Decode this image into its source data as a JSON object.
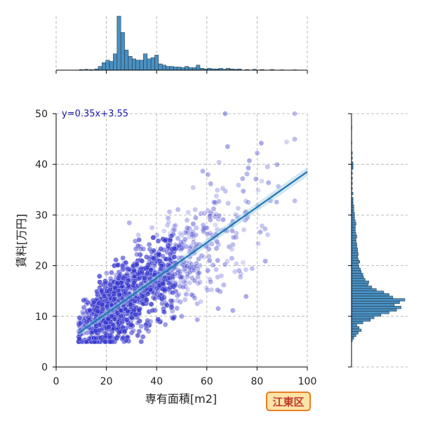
{
  "chart_data": {
    "type": "scatter",
    "title": "",
    "xlabel": "専有面積[m2]",
    "ylabel": "賃料[万円]",
    "xlim": [
      0,
      100
    ],
    "ylim": [
      0,
      50
    ],
    "xticks": [
      "0",
      "20",
      "40",
      "60",
      "80",
      "100"
    ],
    "yticks": [
      "0",
      "10",
      "20",
      "30",
      "40",
      "50"
    ],
    "grid": true,
    "equation": "y=0.35x+3.55",
    "regression": {
      "slope": 0.35,
      "intercept": 3.55,
      "x_range": [
        9,
        100
      ]
    },
    "badge": "江東区",
    "scatter_summary": {
      "x_range": [
        9,
        95
      ],
      "y_range": [
        5,
        50
      ],
      "dense_region": {
        "x": [
          15,
          45
        ],
        "y": [
          6,
          25
        ]
      }
    },
    "marginal_x": {
      "bin_width": 1.5,
      "bins": [
        {
          "x": 10,
          "v": 0.5
        },
        {
          "x": 12,
          "v": 0.7
        },
        {
          "x": 14,
          "v": 0.5
        },
        {
          "x": 16,
          "v": 1
        },
        {
          "x": 17.5,
          "v": 3
        },
        {
          "x": 19,
          "v": 6
        },
        {
          "x": 20.5,
          "v": 8
        },
        {
          "x": 22,
          "v": 7
        },
        {
          "x": 23.5,
          "v": 13
        },
        {
          "x": 25,
          "v": 43
        },
        {
          "x": 26.5,
          "v": 30
        },
        {
          "x": 28,
          "v": 16
        },
        {
          "x": 29.5,
          "v": 11
        },
        {
          "x": 31,
          "v": 9
        },
        {
          "x": 32.5,
          "v": 8
        },
        {
          "x": 34,
          "v": 8
        },
        {
          "x": 35.5,
          "v": 13
        },
        {
          "x": 37,
          "v": 9
        },
        {
          "x": 38.5,
          "v": 10
        },
        {
          "x": 40,
          "v": 12
        },
        {
          "x": 41.5,
          "v": 5
        },
        {
          "x": 43,
          "v": 4
        },
        {
          "x": 44.5,
          "v": 3
        },
        {
          "x": 46,
          "v": 3
        },
        {
          "x": 47.5,
          "v": 2.5
        },
        {
          "x": 49,
          "v": 2.5
        },
        {
          "x": 50.5,
          "v": 2
        },
        {
          "x": 52,
          "v": 3
        },
        {
          "x": 53.5,
          "v": 2
        },
        {
          "x": 55,
          "v": 2
        },
        {
          "x": 56.5,
          "v": 4
        },
        {
          "x": 58,
          "v": 1.5
        },
        {
          "x": 59.5,
          "v": 1
        },
        {
          "x": 61,
          "v": 1.5
        },
        {
          "x": 62.5,
          "v": 1
        },
        {
          "x": 64,
          "v": 1
        },
        {
          "x": 65.5,
          "v": 1.5
        },
        {
          "x": 67,
          "v": 0.7
        },
        {
          "x": 68.5,
          "v": 1.5
        },
        {
          "x": 70,
          "v": 1
        },
        {
          "x": 71.5,
          "v": 0.7
        },
        {
          "x": 73,
          "v": 1
        },
        {
          "x": 76,
          "v": 0.5
        },
        {
          "x": 79,
          "v": 0.7
        },
        {
          "x": 82,
          "v": 0.5
        },
        {
          "x": 86,
          "v": 0.5
        },
        {
          "x": 90,
          "v": 0.3
        },
        {
          "x": 95,
          "v": 0.3
        }
      ]
    },
    "marginal_y": {
      "bin_width": 0.5,
      "bins": [
        {
          "y": 5.25,
          "v": 1
        },
        {
          "y": 5.75,
          "v": 3
        },
        {
          "y": 6.25,
          "v": 6
        },
        {
          "y": 6.75,
          "v": 9
        },
        {
          "y": 7.25,
          "v": 13
        },
        {
          "y": 7.75,
          "v": 10
        },
        {
          "y": 8.25,
          "v": 7
        },
        {
          "y": 8.75,
          "v": 15
        },
        {
          "y": 9.25,
          "v": 25
        },
        {
          "y": 9.75,
          "v": 30
        },
        {
          "y": 10.25,
          "v": 39
        },
        {
          "y": 10.75,
          "v": 50
        },
        {
          "y": 11.25,
          "v": 60
        },
        {
          "y": 11.75,
          "v": 66
        },
        {
          "y": 12.25,
          "v": 57
        },
        {
          "y": 12.75,
          "v": 64
        },
        {
          "y": 13.25,
          "v": 71
        },
        {
          "y": 13.75,
          "v": 55
        },
        {
          "y": 14.25,
          "v": 50
        },
        {
          "y": 14.75,
          "v": 43
        },
        {
          "y": 15.25,
          "v": 33
        },
        {
          "y": 15.75,
          "v": 27
        },
        {
          "y": 16.25,
          "v": 22
        },
        {
          "y": 16.75,
          "v": 23
        },
        {
          "y": 17.25,
          "v": 18
        },
        {
          "y": 17.75,
          "v": 16
        },
        {
          "y": 18.25,
          "v": 15
        },
        {
          "y": 18.75,
          "v": 13
        },
        {
          "y": 19.25,
          "v": 12
        },
        {
          "y": 19.75,
          "v": 10
        },
        {
          "y": 20.25,
          "v": 9
        },
        {
          "y": 20.75,
          "v": 11
        },
        {
          "y": 21.25,
          "v": 9
        },
        {
          "y": 21.75,
          "v": 8
        },
        {
          "y": 22.25,
          "v": 9
        },
        {
          "y": 22.75,
          "v": 8
        },
        {
          "y": 23.25,
          "v": 8
        },
        {
          "y": 23.75,
          "v": 7
        },
        {
          "y": 24.25,
          "v": 7
        },
        {
          "y": 24.75,
          "v": 6
        },
        {
          "y": 25.25,
          "v": 6
        },
        {
          "y": 25.75,
          "v": 7
        },
        {
          "y": 26.25,
          "v": 6
        },
        {
          "y": 26.75,
          "v": 5
        },
        {
          "y": 27.25,
          "v": 5
        },
        {
          "y": 27.75,
          "v": 5
        },
        {
          "y": 28.25,
          "v": 6
        },
        {
          "y": 28.75,
          "v": 5
        },
        {
          "y": 29.25,
          "v": 4
        },
        {
          "y": 29.75,
          "v": 4
        },
        {
          "y": 30.25,
          "v": 4
        },
        {
          "y": 30.75,
          "v": 3
        },
        {
          "y": 31.25,
          "v": 3
        },
        {
          "y": 31.75,
          "v": 3
        },
        {
          "y": 32.25,
          "v": 2
        },
        {
          "y": 32.75,
          "v": 2
        },
        {
          "y": 33.25,
          "v": 2
        },
        {
          "y": 34.25,
          "v": 2
        },
        {
          "y": 35.25,
          "v": 1
        },
        {
          "y": 36.25,
          "v": 1
        },
        {
          "y": 37.25,
          "v": 1
        },
        {
          "y": 38.25,
          "v": 1
        },
        {
          "y": 39.25,
          "v": 2
        },
        {
          "y": 39.75,
          "v": 2
        },
        {
          "y": 40.25,
          "v": 2
        },
        {
          "y": 41.25,
          "v": 1
        },
        {
          "y": 42.25,
          "v": 1
        },
        {
          "y": 44.25,
          "v": 0.5
        },
        {
          "y": 47.25,
          "v": 0.5
        }
      ]
    },
    "colors": {
      "points": "#3333cc",
      "regression": "#1f77b4",
      "confidence_band": "#9ecae1",
      "histogram": "#4a90c2",
      "histogram_edge": "#1b2a3a",
      "grid": "#aaaaaa",
      "badge_fill": "#fde3a7",
      "badge_border": "#e67e22",
      "badge_text": "#c0392b",
      "equation": "#1a1aa8"
    }
  }
}
